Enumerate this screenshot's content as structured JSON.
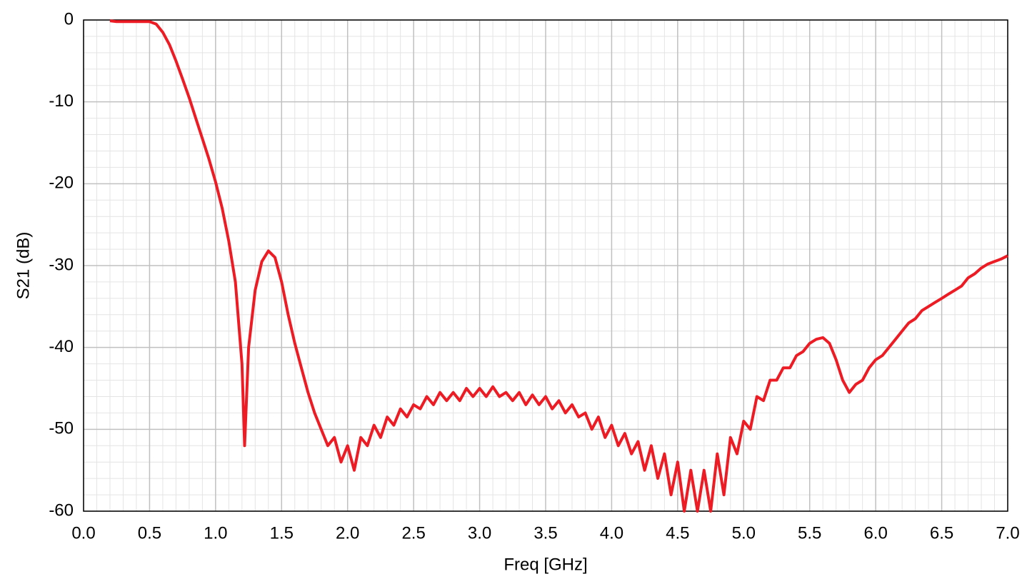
{
  "chart_data": {
    "type": "line",
    "xlabel": "Freq [GHz]",
    "ylabel": "S21 (dB)",
    "xlim": [
      0,
      7
    ],
    "ylim": [
      -60,
      0
    ],
    "xticks": [
      {
        "value": 0,
        "label": "0.0"
      },
      0.5,
      {
        "value": 1,
        "label": "1.0"
      },
      1.5,
      {
        "value": 2,
        "label": "2.0"
      },
      2.5,
      {
        "value": 3,
        "label": "3.0"
      },
      3.5,
      {
        "value": 4,
        "label": "4.0"
      },
      4.5,
      {
        "value": 5,
        "label": "5.0"
      },
      5.5,
      {
        "value": 6,
        "label": "6.0"
      },
      6.5,
      {
        "value": 7,
        "label": "7.0"
      }
    ],
    "yticks": [
      -60,
      -50,
      -40,
      -30,
      -20,
      -10,
      0
    ],
    "grid": true,
    "x": [
      0.2,
      0.25,
      0.3,
      0.35,
      0.4,
      0.45,
      0.5,
      0.55,
      0.6,
      0.65,
      0.7,
      0.75,
      0.8,
      0.85,
      0.9,
      0.95,
      1.0,
      1.05,
      1.1,
      1.15,
      1.2,
      1.22,
      1.25,
      1.3,
      1.35,
      1.4,
      1.45,
      1.5,
      1.55,
      1.6,
      1.65,
      1.7,
      1.75,
      1.8,
      1.85,
      1.9,
      1.95,
      2.0,
      2.05,
      2.1,
      2.15,
      2.2,
      2.25,
      2.3,
      2.35,
      2.4,
      2.45,
      2.5,
      2.55,
      2.6,
      2.65,
      2.7,
      2.75,
      2.8,
      2.85,
      2.9,
      2.95,
      3.0,
      3.05,
      3.1,
      3.15,
      3.2,
      3.25,
      3.3,
      3.35,
      3.4,
      3.45,
      3.5,
      3.55,
      3.6,
      3.65,
      3.7,
      3.75,
      3.8,
      3.85,
      3.9,
      3.95,
      4.0,
      4.05,
      4.1,
      4.15,
      4.2,
      4.25,
      4.3,
      4.35,
      4.4,
      4.45,
      4.5,
      4.55,
      4.6,
      4.65,
      4.7,
      4.75,
      4.8,
      4.85,
      4.9,
      4.95,
      5.0,
      5.05,
      5.1,
      5.15,
      5.2,
      5.25,
      5.3,
      5.35,
      5.4,
      5.45,
      5.5,
      5.55,
      5.6,
      5.65,
      5.7,
      5.75,
      5.8,
      5.85,
      5.9,
      5.95,
      6.0,
      6.05,
      6.1,
      6.15,
      6.2,
      6.25,
      6.3,
      6.35,
      6.4,
      6.45,
      6.5,
      6.55,
      6.6,
      6.65,
      6.7,
      6.75,
      6.8,
      6.85,
      6.9,
      6.95,
      7.0
    ],
    "series": [
      {
        "color": "#ed1c24",
        "values": [
          -0.1,
          -0.2,
          -0.2,
          -0.2,
          -0.2,
          -0.2,
          -0.2,
          -0.5,
          -1.5,
          -3,
          -5,
          -7.2,
          -9.5,
          -12,
          -14.5,
          -17,
          -19.8,
          -23,
          -27,
          -32,
          -42,
          -52,
          -40,
          -33,
          -29.5,
          -28.2,
          -29,
          -32,
          -36,
          -39.5,
          -42.5,
          -45.5,
          -48,
          -50,
          -52,
          -51,
          -54,
          -52,
          -55,
          -51,
          -52,
          -49.5,
          -51,
          -48.5,
          -49.5,
          -47.5,
          -48.5,
          -47,
          -47.5,
          -46,
          -47,
          -45.5,
          -46.5,
          -45.5,
          -46.5,
          -45,
          -46,
          -45,
          -46,
          -44.8,
          -46,
          -45.5,
          -46.5,
          -45.5,
          -47,
          -45.8,
          -47,
          -46,
          -47.5,
          -46.5,
          -48,
          -47,
          -48.5,
          -48,
          -50,
          -48.5,
          -51,
          -49.5,
          -52,
          -50.5,
          -53,
          -51.5,
          -55,
          -52,
          -56,
          -53,
          -58,
          -54,
          -60,
          -55,
          -60,
          -55,
          -60,
          -53,
          -58,
          -51,
          -53,
          -49,
          -50,
          -46,
          -46.5,
          -44,
          -44,
          -42.5,
          -42.5,
          -41,
          -40.5,
          -39.5,
          -39,
          -38.8,
          -39.5,
          -41.5,
          -44,
          -45.5,
          -44.5,
          -44,
          -42.5,
          -41.5,
          -41,
          -40,
          -39,
          -38,
          -37,
          -36.5,
          -35.5,
          -35,
          -34.5,
          -34,
          -33.5,
          -33,
          -32.5,
          -31.5,
          -31,
          -30.3,
          -29.8,
          -29.5,
          -29.2,
          -28.8
        ]
      }
    ]
  }
}
